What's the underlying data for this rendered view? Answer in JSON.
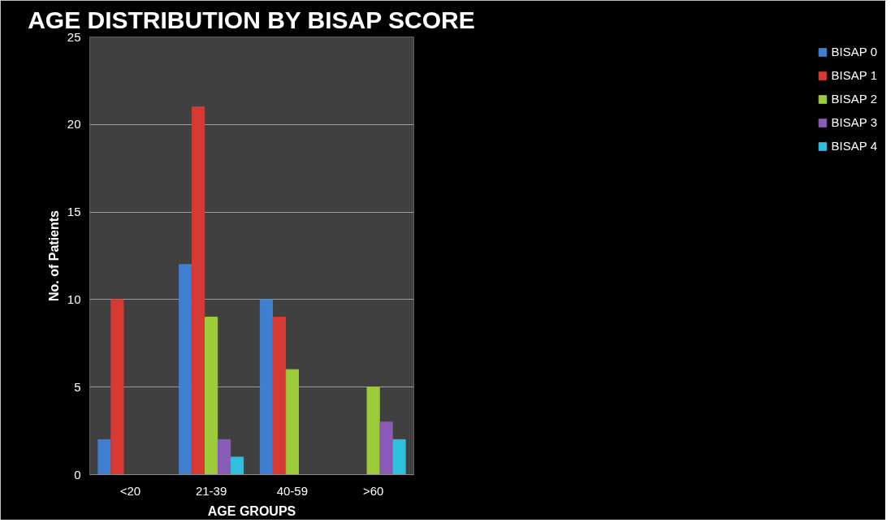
{
  "chart_data": {
    "type": "bar",
    "title": "AGE DISTRIBUTION BY BISAP SCORE",
    "xlabel": "AGE GROUPS",
    "ylabel": "No. of Patients",
    "categories": [
      "<20",
      "21-39",
      "40-59",
      ">60"
    ],
    "series": [
      {
        "name": "BISAP 0",
        "color": "#3f7fd0",
        "values": [
          2,
          12,
          10,
          null
        ]
      },
      {
        "name": "BISAP 1",
        "color": "#d63a33",
        "values": [
          10,
          21,
          9,
          null
        ]
      },
      {
        "name": "BISAP 2",
        "color": "#9ccc3a",
        "values": [
          null,
          9,
          6,
          5
        ]
      },
      {
        "name": "BISAP 3",
        "color": "#8a5cb8",
        "values": [
          null,
          2,
          null,
          3
        ]
      },
      {
        "name": "BISAP 4",
        "color": "#2fc0e0",
        "values": [
          null,
          1,
          null,
          2
        ]
      }
    ],
    "ylim": [
      0,
      25
    ],
    "yticks": [
      0,
      5,
      10,
      15,
      20,
      25
    ],
    "grid": "y",
    "legend": "right"
  }
}
